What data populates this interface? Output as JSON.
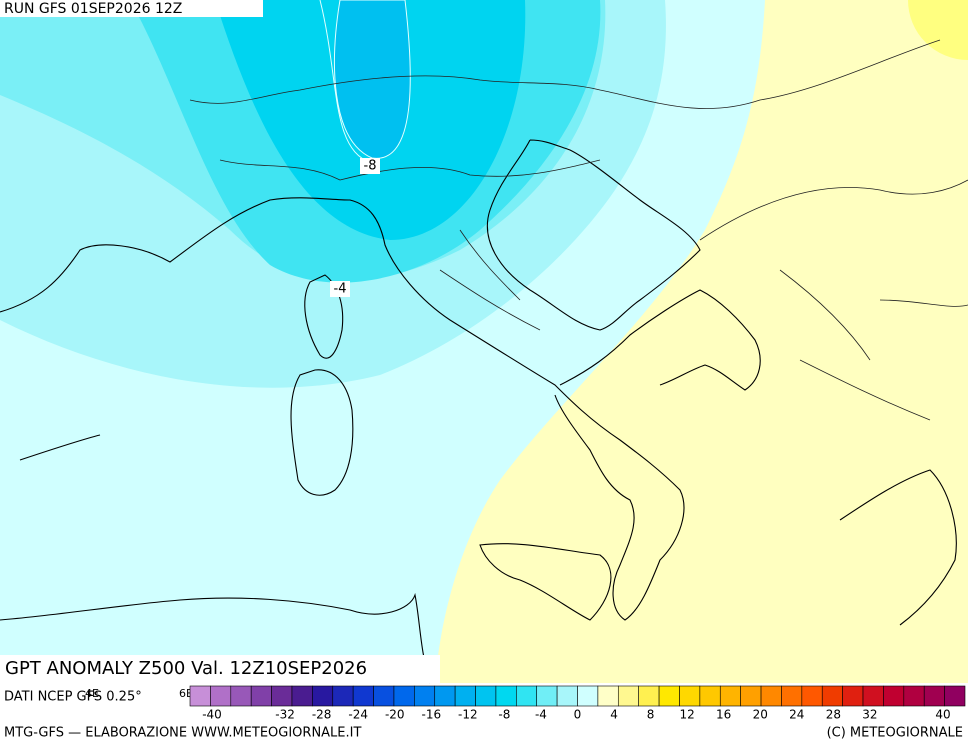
{
  "header": {
    "run": "RUN GFS 01SEP2026 12Z"
  },
  "map": {
    "contour_labels": [
      "-8",
      "-4"
    ],
    "axis_labels": [
      "4E",
      "6E"
    ]
  },
  "footer": {
    "title": "GPT ANOMALY Z500 Val. 12Z10SEP2026",
    "source": "DATI NCEP GFS 0.25°",
    "credit": "MTG-GFS — ELABORAZIONE WWW.METEOGIORNALE.IT",
    "copyright": "(C) METEOGIORNALE"
  },
  "colorbar": {
    "colors": [
      "#c78fd8",
      "#b070c8",
      "#9858b8",
      "#8040a8",
      "#6a2c98",
      "#4a1c90",
      "#2818a0",
      "#1c28b8",
      "#1038d0",
      "#0850e0",
      "#0068ec",
      "#0080f0",
      "#0098f0",
      "#00b0f0",
      "#00c4f0",
      "#00d8f0",
      "#30e4f2",
      "#70eef6",
      "#a8f6fa",
      "#d0ffff",
      "#ffffc8",
      "#fff890",
      "#fff050",
      "#ffe800",
      "#ffd800",
      "#ffc800",
      "#ffb400",
      "#ffa000",
      "#ff8800",
      "#ff7000",
      "#ff5800",
      "#f03c00",
      "#e02010",
      "#d01020",
      "#c00030",
      "#b00040",
      "#a00050",
      "#900060"
    ],
    "labels": [
      -40,
      -32,
      -28,
      -24,
      -20,
      -16,
      -12,
      -8,
      -4,
      0,
      4,
      8,
      12,
      16,
      20,
      24,
      28,
      32,
      40
    ]
  }
}
